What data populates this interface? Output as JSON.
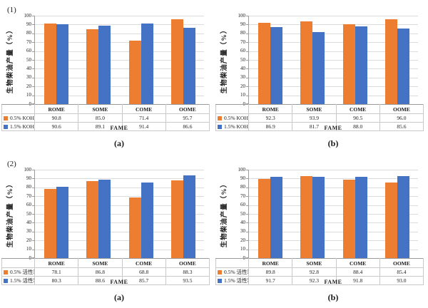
{
  "figure_title": "",
  "colors": {
    "series_orange": "#ED7D31",
    "series_blue": "#4472C4",
    "gridline": "#DCDCDC",
    "axis_line": "#9B9B9B",
    "table_border": "#C9C9C9"
  },
  "chart_data": [
    {
      "type": "bar",
      "panel_label": "(1)",
      "caption": "(a)",
      "title": "",
      "ylabel": "生物柴油产量（%）",
      "xlabel": "FAME",
      "categories": [
        "ROME",
        "SOME",
        "COME",
        "OOME"
      ],
      "series": [
        {
          "name": "0.5% KOH",
          "color": "#ED7D31",
          "values": [
            90.8,
            85.0,
            71.4,
            95.7
          ]
        },
        {
          "name": "1.5% KOH",
          "color": "#4472C4",
          "values": [
            90.6,
            89.1,
            91.4,
            86.6
          ]
        }
      ],
      "ylim": [
        0,
        100
      ],
      "ytick_step": 10,
      "grid": true,
      "legend_position": "table-left"
    },
    {
      "type": "bar",
      "panel_label": "",
      "caption": "(b)",
      "title": "",
      "ylabel": "生物柴油产量（%）",
      "xlabel": "FAME",
      "categories": [
        "ROME",
        "SOME",
        "COME",
        "OOME"
      ],
      "series": [
        {
          "name": "0.5% KOH",
          "color": "#ED7D31",
          "values": [
            92.3,
            93.9,
            90.5,
            96.0
          ]
        },
        {
          "name": "1.5% KOH",
          "color": "#4472C4",
          "values": [
            86.9,
            81.7,
            88.0,
            85.6
          ]
        }
      ],
      "ylim": [
        0,
        100
      ],
      "ytick_step": 10,
      "grid": true,
      "legend_position": "table-left"
    },
    {
      "type": "bar",
      "panel_label": "(2)",
      "caption": "(a)",
      "title": "",
      "ylabel": "生物柴油产量（%）",
      "xlabel": "FAME",
      "categories": [
        "ROME",
        "SOME",
        "COME",
        "OOME"
      ],
      "series": [
        {
          "name": "0.5% 活性炭",
          "color": "#ED7D31",
          "values": [
            78.1,
            86.8,
            68.8,
            88.3
          ]
        },
        {
          "name": "1.5% 活性炭",
          "color": "#4472C4",
          "values": [
            80.3,
            88.6,
            85.7,
            93.5
          ]
        }
      ],
      "ylim": [
        0,
        100
      ],
      "ytick_step": 10,
      "grid": true,
      "legend_position": "table-left"
    },
    {
      "type": "bar",
      "panel_label": "",
      "caption": "(b)",
      "title": "",
      "ylabel": "生物柴油产量（%）",
      "xlabel": "FAME",
      "categories": [
        "ROME",
        "SOME",
        "COME",
        "OOME"
      ],
      "series": [
        {
          "name": "0.5% 活性炭",
          "color": "#ED7D31",
          "values": [
            89.8,
            92.8,
            88.4,
            85.4
          ]
        },
        {
          "name": "1.5% 活性炭",
          "color": "#4472C4",
          "values": [
            91.7,
            92.3,
            91.8,
            93.0
          ]
        }
      ],
      "ylim": [
        0,
        100
      ],
      "ytick_step": 10,
      "grid": true,
      "legend_position": "table-left"
    }
  ]
}
